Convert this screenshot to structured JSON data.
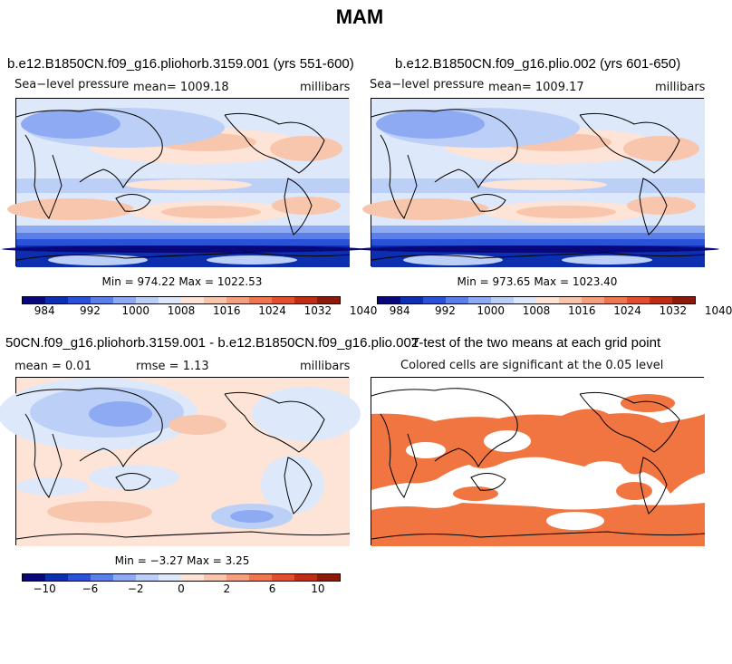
{
  "figure": {
    "title": "MAM"
  },
  "colors": {
    "slp_scale": [
      "#08087a",
      "#0c2fb0",
      "#2a52d8",
      "#5a7fe8",
      "#8eaaf2",
      "#bcd0f7",
      "#dde8fb",
      "#fde4d7",
      "#f8c6ac",
      "#f4a07e",
      "#ee7650",
      "#e24f2e",
      "#bf2d15",
      "#8c1a08"
    ],
    "diff_scale": [
      "#08087a",
      "#0c2fb0",
      "#2a52d8",
      "#5a7fe8",
      "#8eaaf2",
      "#bcd0f7",
      "#dde8fb",
      "#fde4d7",
      "#f8c6ac",
      "#f4a07e",
      "#ee7650",
      "#e24f2e",
      "#bf2d15",
      "#8c1a08"
    ],
    "significant": "#f07540"
  },
  "chart_data": [
    {
      "type": "heatmap",
      "title": "b.e12.B1850CN.f09_g16.pliohorb.3159.001 (yrs 551-600)",
      "variable": "Sea−level pressure",
      "mean_label": "mean=  1009.18",
      "mean": 1009.18,
      "units": "millibars",
      "minmax_label": "Min = 974.22  Max = 1022.53",
      "min": 974.22,
      "max": 1022.53,
      "colorbar_ticks": [
        "984",
        "992",
        "1000",
        "1008",
        "1016",
        "1024",
        "1032",
        "1040"
      ]
    },
    {
      "type": "heatmap",
      "title": "b.e12.B1850CN.f09_g16.plio.002 (yrs 601-650)",
      "variable": "Sea−level pressure",
      "mean_label": "mean=  1009.17",
      "mean": 1009.17,
      "units": "millibars",
      "minmax_label": "Min = 973.65  Max = 1023.40",
      "min": 973.65,
      "max": 1023.4,
      "colorbar_ticks": [
        "984",
        "992",
        "1000",
        "1008",
        "1016",
        "1024",
        "1032",
        "1040"
      ]
    },
    {
      "type": "heatmap",
      "title": "50CN.f09_g16.pliohorb.3159.001 - b.e12.B1850CN.f09_g16.plio.002",
      "mean_label": "mean =    0.01",
      "mean": 0.01,
      "rmse_label": "rmse =    1.13",
      "rmse": 1.13,
      "units": "millibars",
      "minmax_label": "Min =  −3.27  Max =    3.25",
      "min": -3.27,
      "max": 3.25,
      "colorbar_ticks": [
        "−10",
        "−6",
        "−2",
        "0",
        "2",
        "6",
        "10"
      ]
    },
    {
      "type": "heatmap",
      "title": "T-test of the two means at each grid point",
      "subtitle": "Colored cells are significant at the 0.05 level",
      "significance_level": 0.05
    }
  ]
}
